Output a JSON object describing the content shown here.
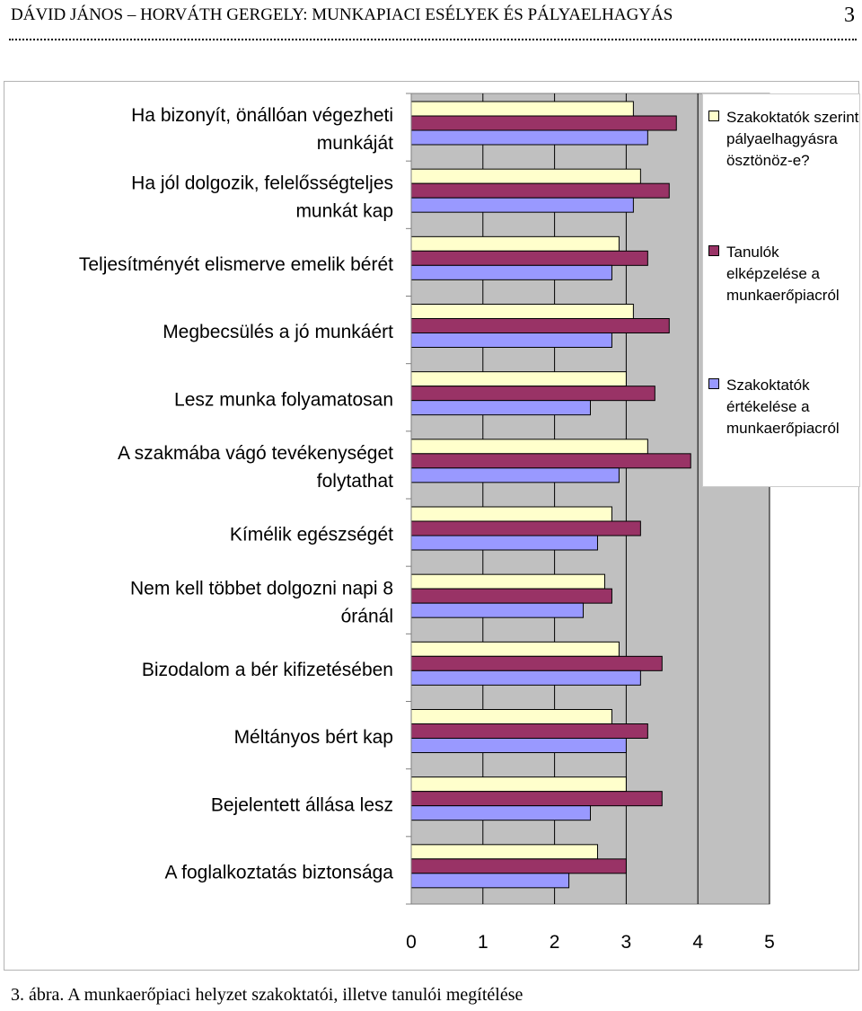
{
  "header": {
    "title": "DÁVID JÁNOS – HORVÁTH GERGELY: MUNKAPIACI ESÉLYEK ÉS PÁLYAELHAGYÁS",
    "page_number": "3"
  },
  "caption": "3. ábra. A munkaerőpiaci helyzet szakoktatói, illetve tanulói megítélése",
  "chart_data": {
    "type": "bar",
    "orientation": "horizontal",
    "title": "",
    "xlabel": "",
    "ylabel": "",
    "xlim": [
      0,
      5
    ],
    "x_ticks": [
      "0",
      "1",
      "2",
      "3",
      "4",
      "5"
    ],
    "grid": "vertical gridlines",
    "plot_background": "#c0c0c0",
    "legend_position": "right",
    "categories": [
      "Ha bizonyít, önállóan végezheti munkáját",
      "Ha jól dolgozik, felelősségteljes munkát kap",
      "Teljesítményét elismerve emelik bérét",
      "Megbecsülés a jó munkáért",
      "Lesz munka folyamatosan",
      "A szakmába vágó tevékenységet folytathat",
      "Kímélik egészségét",
      "Nem kell többet dolgozni napi 8 óránál",
      "Bizodalom a bér kifizetésében",
      "Méltányos bért kap",
      "Bejelentett állása lesz",
      "A foglalkoztatás biztonsága"
    ],
    "series": [
      {
        "name": "Szakoktatók szerint pályaelhagyásra ösztönöz-e?",
        "color": "#ffffcc",
        "values": [
          3.1,
          3.2,
          2.9,
          3.1,
          3.0,
          3.3,
          2.8,
          2.7,
          2.9,
          2.8,
          3.0,
          2.6
        ]
      },
      {
        "name": "Tanulók elképzelése a munkaerőpiacról",
        "color": "#993366",
        "values": [
          3.7,
          3.6,
          3.3,
          3.6,
          3.4,
          3.9,
          3.2,
          2.8,
          3.5,
          3.3,
          3.5,
          3.0
        ]
      },
      {
        "name": "Szakoktatók értékelése a munkaerőpiacról",
        "color": "#9999ff",
        "values": [
          3.3,
          3.1,
          2.8,
          2.8,
          2.5,
          2.9,
          2.6,
          2.4,
          3.2,
          3.0,
          2.5,
          2.2
        ]
      }
    ]
  }
}
